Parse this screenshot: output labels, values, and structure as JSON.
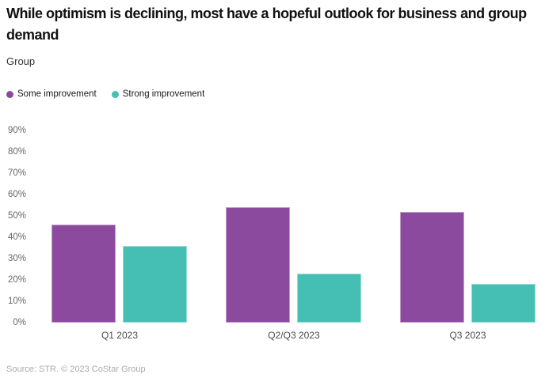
{
  "header": {
    "title": "While optimism is declining, most have a hopeful outlook for business and group demand",
    "subtitle": "Group"
  },
  "legend": {
    "items": [
      {
        "label": "Some improvement",
        "color": "#8c4a9e"
      },
      {
        "label": "Strong improvement",
        "color": "#45bfb4"
      }
    ]
  },
  "chart_data": {
    "type": "bar",
    "title": "While optimism is declining, most have a hopeful outlook for business and group demand",
    "group_label": "Group",
    "categories": [
      "Q1 2023",
      "Q2/Q3 2023",
      "Q3 2023"
    ],
    "series": [
      {
        "name": "Some improvement",
        "color": "#8c4a9e",
        "values": [
          46,
          54,
          52
        ]
      },
      {
        "name": "Strong improvement",
        "color": "#45bfb4",
        "values": [
          36,
          23,
          18
        ]
      }
    ],
    "xlabel": "",
    "ylabel": "",
    "ylim": [
      0,
      90
    ],
    "y_tick_step": 10,
    "y_tick_labels": [
      "0%",
      "10%",
      "20%",
      "30%",
      "40%",
      "50%",
      "60%",
      "70%",
      "80%",
      "90%"
    ],
    "grid": "off",
    "legend_position": "top-left",
    "value_unit": "%"
  },
  "footer": {
    "source": "Source: STR. © 2023 CoStar Group"
  }
}
